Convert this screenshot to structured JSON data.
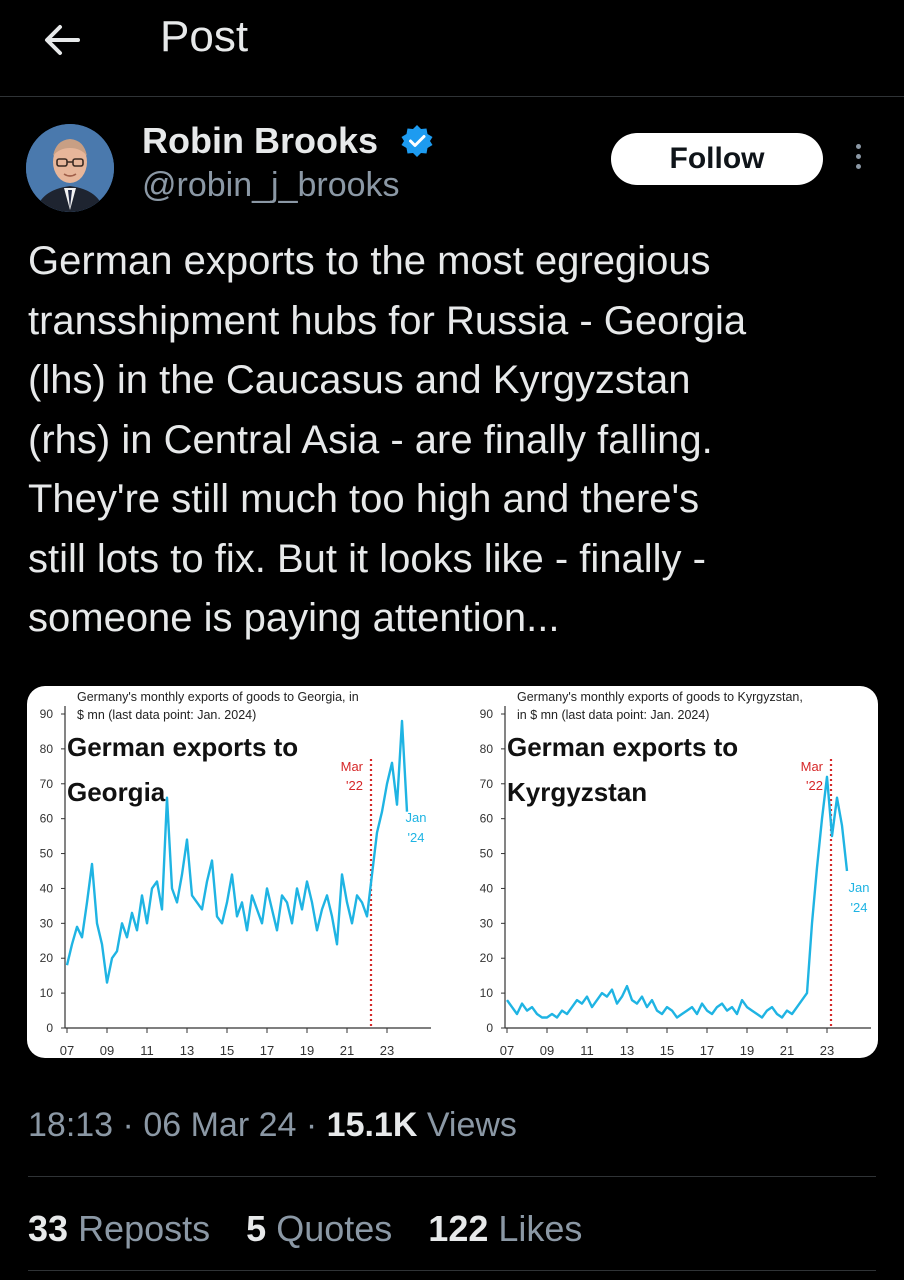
{
  "header": {
    "title": "Post"
  },
  "author": {
    "name": "Robin Brooks",
    "handle": "@robin_j_brooks",
    "follow_label": "Follow"
  },
  "tweet": {
    "text": "German exports to the most egregious\ntransshipment hubs for Russia - Georgia\n(lhs) in the Caucasus and Kyrgyzstan\n(rhs) in Central Asia - are finally falling.\nThey're still much too high and there's\nstill lots to fix. But it looks like - finally -\nsomeone is paying attention..."
  },
  "meta": {
    "time": "18:13",
    "date": "06 Mar 24",
    "views_count": "15.1K",
    "views_label": "Views"
  },
  "stats": {
    "reposts_count": "33",
    "reposts_label": "Reposts",
    "quotes_count": "5",
    "quotes_label": "Quotes",
    "likes_count": "122",
    "likes_label": "Likes"
  },
  "colors": {
    "line": "#1fb4e3",
    "marker": "#d62728",
    "jan_label": "#1fb4e3"
  },
  "icons": {
    "back": "arrow-left-icon",
    "verified": "verified-badge-icon",
    "more": "more-vertical-icon"
  },
  "chart_data": [
    {
      "type": "line",
      "title": "Germany's monthly exports of goods to Georgia, in $ mn (last data point: Jan. 2024)",
      "overlay_title": "German exports to Georgia",
      "ylim": [
        0,
        90
      ],
      "yticks": [
        "0",
        "10",
        "20",
        "30",
        "40",
        "50",
        "60",
        "70",
        "80",
        "90"
      ],
      "xtick_labels": [
        "07",
        "09",
        "11",
        "13",
        "15",
        "17",
        "19",
        "21",
        "23"
      ],
      "marker_label": [
        "Mar",
        "'22"
      ],
      "end_label": [
        "Jan",
        "'24"
      ],
      "x": [
        2007.0,
        2007.25,
        2007.5,
        2007.75,
        2008.0,
        2008.25,
        2008.5,
        2008.75,
        2009.0,
        2009.25,
        2009.5,
        2009.75,
        2010.0,
        2010.25,
        2010.5,
        2010.75,
        2011.0,
        2011.25,
        2011.5,
        2011.75,
        2012.0,
        2012.25,
        2012.5,
        2012.75,
        2013.0,
        2013.25,
        2013.5,
        2013.75,
        2014.0,
        2014.25,
        2014.5,
        2014.75,
        2015.0,
        2015.25,
        2015.5,
        2015.75,
        2016.0,
        2016.25,
        2016.5,
        2016.75,
        2017.0,
        2017.25,
        2017.5,
        2017.75,
        2018.0,
        2018.25,
        2018.5,
        2018.75,
        2019.0,
        2019.25,
        2019.5,
        2019.75,
        2020.0,
        2020.25,
        2020.5,
        2020.75,
        2021.0,
        2021.25,
        2021.5,
        2021.75,
        2022.0,
        2022.25,
        2022.5,
        2022.75,
        2023.0,
        2023.25,
        2023.5,
        2023.75,
        2024.0
      ],
      "values": [
        18,
        24,
        29,
        26,
        36,
        47,
        30,
        24,
        13,
        20,
        22,
        30,
        26,
        33,
        28,
        38,
        30,
        40,
        42,
        34,
        66,
        40,
        36,
        44,
        54,
        38,
        36,
        34,
        42,
        48,
        32,
        30,
        36,
        44,
        32,
        36,
        28,
        38,
        34,
        30,
        40,
        34,
        28,
        38,
        36,
        30,
        40,
        34,
        42,
        36,
        28,
        34,
        38,
        32,
        24,
        44,
        36,
        30,
        38,
        36,
        32,
        44,
        56,
        62,
        70,
        76,
        64,
        88,
        62
      ]
    },
    {
      "type": "line",
      "title": "Germany's monthly exports of goods to Kyrgyzstan, in $ mn (last data point: Jan. 2024)",
      "overlay_title": "German exports to Kyrgyzstan",
      "ylim": [
        0,
        90
      ],
      "yticks": [
        "0",
        "10",
        "20",
        "30",
        "40",
        "50",
        "60",
        "70",
        "80",
        "90"
      ],
      "xtick_labels": [
        "07",
        "09",
        "11",
        "13",
        "15",
        "17",
        "19",
        "21",
        "23"
      ],
      "marker_label": [
        "Mar",
        "'22"
      ],
      "end_label": [
        "Jan",
        "'24"
      ],
      "x": [
        2007.0,
        2007.25,
        2007.5,
        2007.75,
        2008.0,
        2008.25,
        2008.5,
        2008.75,
        2009.0,
        2009.25,
        2009.5,
        2009.75,
        2010.0,
        2010.25,
        2010.5,
        2010.75,
        2011.0,
        2011.25,
        2011.5,
        2011.75,
        2012.0,
        2012.25,
        2012.5,
        2012.75,
        2013.0,
        2013.25,
        2013.5,
        2013.75,
        2014.0,
        2014.25,
        2014.5,
        2014.75,
        2015.0,
        2015.25,
        2015.5,
        2015.75,
        2016.0,
        2016.25,
        2016.5,
        2016.75,
        2017.0,
        2017.25,
        2017.5,
        2017.75,
        2018.0,
        2018.25,
        2018.5,
        2018.75,
        2019.0,
        2019.25,
        2019.5,
        2019.75,
        2020.0,
        2020.25,
        2020.5,
        2020.75,
        2021.0,
        2021.25,
        2021.5,
        2021.75,
        2022.0,
        2022.25,
        2022.5,
        2022.75,
        2023.0,
        2023.25,
        2023.5,
        2023.75,
        2024.0
      ],
      "values": [
        8,
        6,
        4,
        7,
        5,
        6,
        4,
        3,
        3,
        4,
        3,
        5,
        4,
        6,
        8,
        7,
        9,
        6,
        8,
        10,
        9,
        11,
        7,
        9,
        12,
        8,
        7,
        9,
        6,
        8,
        5,
        4,
        6,
        5,
        3,
        4,
        5,
        6,
        4,
        7,
        5,
        4,
        6,
        7,
        5,
        6,
        4,
        8,
        6,
        5,
        4,
        3,
        5,
        6,
        4,
        3,
        5,
        4,
        6,
        8,
        10,
        30,
        46,
        60,
        72,
        55,
        66,
        58,
        45
      ]
    }
  ]
}
